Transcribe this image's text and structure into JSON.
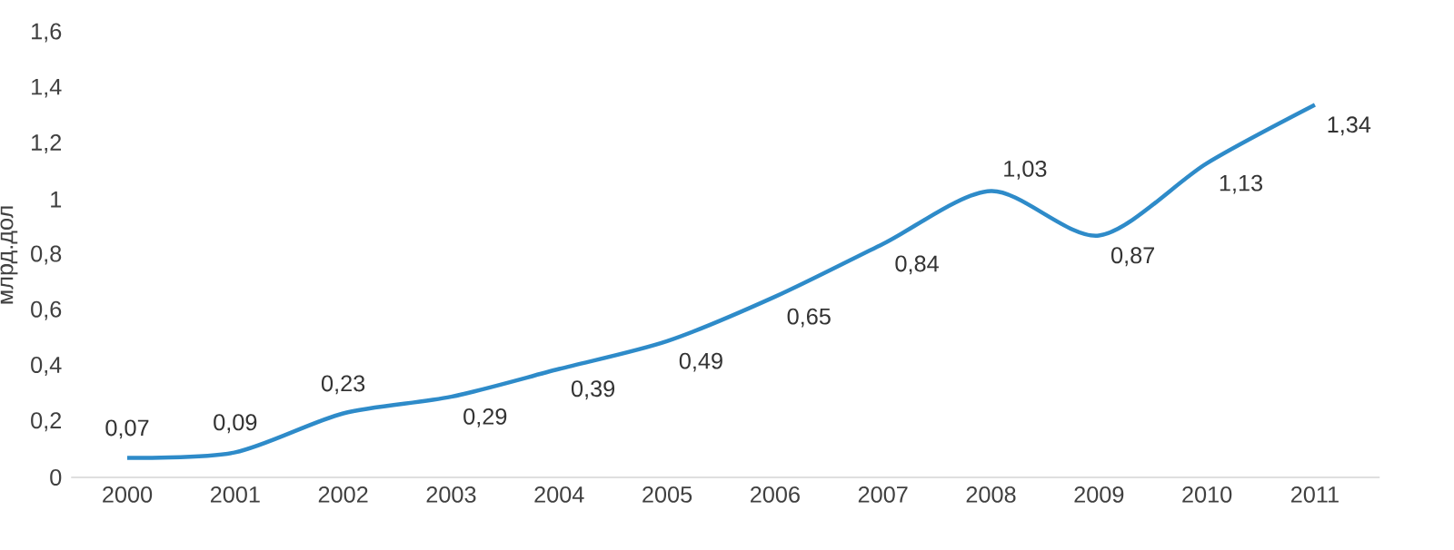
{
  "chart_data": {
    "type": "line",
    "ylabel": "млрд.дол",
    "categories": [
      "2000",
      "2001",
      "2002",
      "2003",
      "2004",
      "2005",
      "2006",
      "2007",
      "2008",
      "2009",
      "2010",
      "2011"
    ],
    "values": [
      0.07,
      0.09,
      0.23,
      0.29,
      0.39,
      0.49,
      0.65,
      0.84,
      1.03,
      0.87,
      1.13,
      1.34
    ],
    "value_labels": [
      "0,07",
      "0,09",
      "0,23",
      "0,29",
      "0,39",
      "0,49",
      "0,65",
      "0,84",
      "1,03",
      "0,87",
      "1,13",
      "1,34"
    ],
    "color": "#2e8bc9",
    "ylim": [
      0,
      1.6
    ],
    "yticks": [
      {
        "value": 0,
        "label": "0"
      },
      {
        "value": 0.2,
        "label": "0,2"
      },
      {
        "value": 0.4,
        "label": "0,4"
      },
      {
        "value": 0.6,
        "label": "0,6"
      },
      {
        "value": 0.8,
        "label": "0,8"
      },
      {
        "value": 1,
        "label": "1"
      },
      {
        "value": 1.2,
        "label": "1,2"
      },
      {
        "value": 1.4,
        "label": "1,4"
      },
      {
        "value": 1.6,
        "label": "1,6"
      }
    ]
  }
}
